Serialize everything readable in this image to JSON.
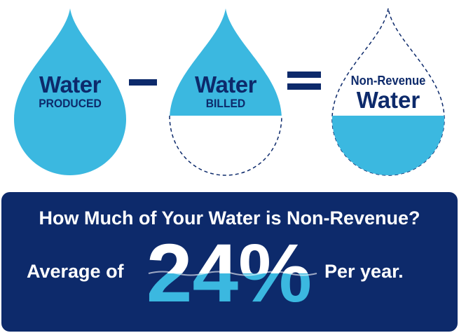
{
  "drops": {
    "produced": {
      "main": "Water",
      "sub": "PRODUCED"
    },
    "billed": {
      "main": "Water",
      "sub": "BILLED"
    },
    "nonrevenue": {
      "top": "Non-Revenue",
      "bottom": "Water"
    }
  },
  "banner": {
    "question": "How Much of Your Water is Non-Revenue?",
    "average_label": "Average of",
    "percentage": "24%",
    "per_year": "Per year."
  },
  "colors": {
    "water": "#3bb8e0",
    "navy": "#0d2a6b",
    "white": "#ffffff"
  }
}
